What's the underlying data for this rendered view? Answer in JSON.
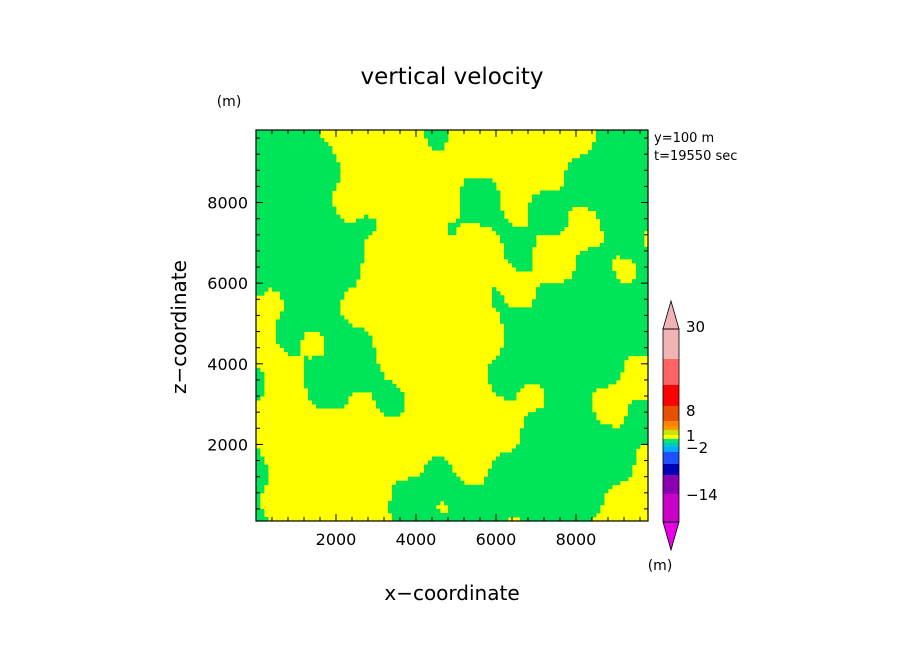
{
  "chart_data": {
    "type": "heatmap",
    "title": "vertical velocity",
    "xlabel": "x−coordinate",
    "ylabel": "z−coordinate",
    "y_unit": "(m)",
    "colorbar_unit": "(m)",
    "annotations": [
      "y=100 m",
      "t=19550 sec"
    ],
    "xlim": [
      0,
      9800
    ],
    "ylim": [
      100,
      9800
    ],
    "xticks": [
      "2000",
      "4000",
      "6000",
      "8000"
    ],
    "yticks": [
      "2000",
      "4000",
      "6000",
      "8000"
    ],
    "xtick_values": [
      2000,
      4000,
      6000,
      8000
    ],
    "ytick_values": [
      2000,
      4000,
      6000,
      8000
    ],
    "colorbar": {
      "labels": [
        "30",
        "8",
        "1",
        "−2",
        "−14"
      ],
      "bands": [
        {
          "low": -30,
          "high": -14,
          "color": "#c800c8"
        },
        {
          "low": -14,
          "high": -8,
          "color": "#8c00b4"
        },
        {
          "low": -8,
          "high": -4,
          "color": "#0000b4"
        },
        {
          "low": -4,
          "high": -2,
          "color": "#1e50ff"
        },
        {
          "low": -2,
          "high": -1,
          "color": "#00aaff"
        },
        {
          "low": -1,
          "high": -0.5,
          "color": "#00c8c8"
        },
        {
          "low": -0.5,
          "high": 0,
          "color": "#00e678"
        },
        {
          "low": 0,
          "high": 0.5,
          "color": "#ffff00"
        },
        {
          "low": 0.5,
          "high": 1,
          "color": "#c8e600"
        },
        {
          "low": 1,
          "high": 2,
          "color": "#ff9600"
        },
        {
          "low": 2,
          "high": 4,
          "color": "#ff8200"
        },
        {
          "low": 4,
          "high": 8,
          "color": "#e65000"
        },
        {
          "low": 8,
          "high": 14,
          "color": "#ff0000"
        },
        {
          "low": 14,
          "high": 20,
          "color": "#ff6464"
        },
        {
          "low": 20,
          "high": 30,
          "color": "#f0b4b4"
        }
      ],
      "under_color": "#e600e6",
      "over_color": "#f0b4b4"
    },
    "field_colors": {
      "negative": "#00e45a",
      "positive": "#ffff00"
    },
    "field_description": "dominant values between -0.5 and 0.5"
  }
}
